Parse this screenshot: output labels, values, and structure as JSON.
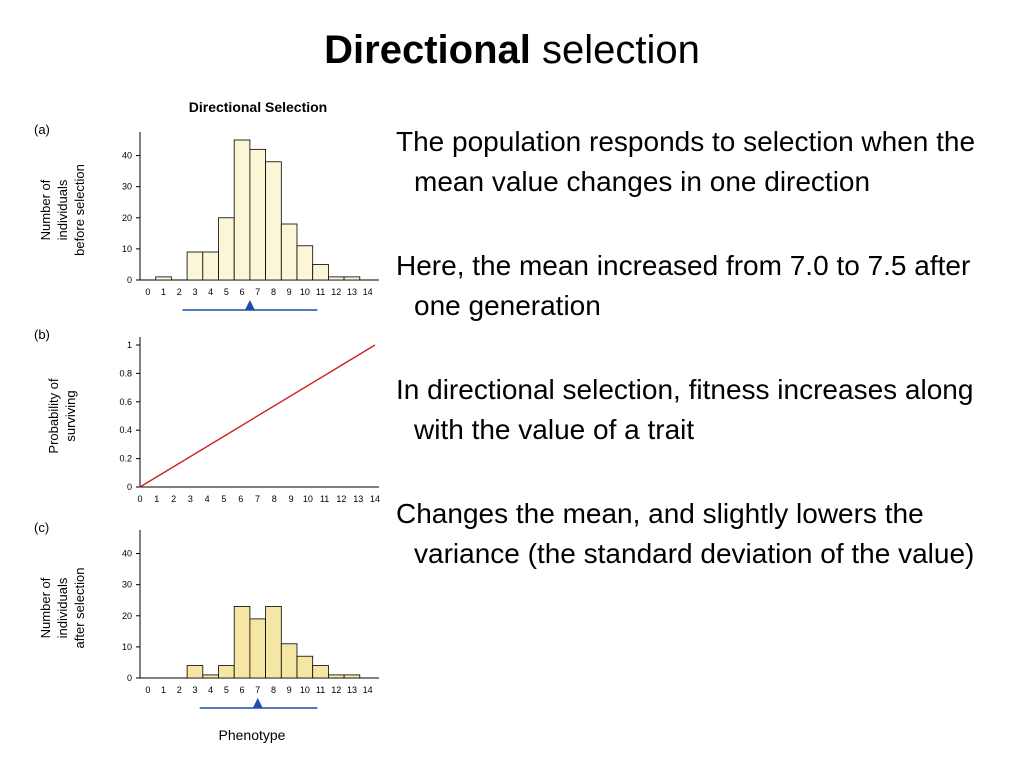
{
  "slide": {
    "title_bold": "Directional",
    "title_rest": "selection",
    "paragraphs": [
      "The population responds to selection when the mean value changes in one direction",
      "Here, the mean increased from 7.0 to 7.5 after one generation",
      "In directional selection, fitness increases along with the value of a trait",
      "Changes the mean, and slightly lowers the variance (the standard deviation of the value)"
    ]
  },
  "figure": {
    "title": "Directional Selection",
    "xlabel": "Phenotype",
    "colors": {
      "bars_a": "#fbf6d6",
      "bars_c": "#f6e6a6",
      "line": "#cc2222",
      "marker": "#1f4fa8"
    }
  },
  "chart_data": [
    {
      "type": "bar",
      "panel": "(a)",
      "ylabel": [
        "Number of",
        "individuals",
        "before selection"
      ],
      "categories": [
        "0",
        "1",
        "2",
        "3",
        "4",
        "5",
        "6",
        "7",
        "8",
        "9",
        "10",
        "11",
        "12",
        "13",
        "14"
      ],
      "values": [
        0,
        1,
        0,
        9,
        9,
        20,
        45,
        42,
        38,
        18,
        11,
        5,
        1,
        1,
        0
      ],
      "yticks": [
        0,
        10,
        20,
        30,
        40
      ],
      "ylim": [
        0,
        45
      ],
      "mean": 7.0,
      "range": [
        2.7,
        11.3
      ]
    },
    {
      "type": "line",
      "panel": "(b)",
      "ylabel": [
        "Probability of",
        "surviving"
      ],
      "x": [
        0,
        14
      ],
      "y": [
        0,
        1
      ],
      "xticks": [
        "0",
        "1",
        "2",
        "3",
        "4",
        "5",
        "6",
        "7",
        "8",
        "9",
        "10",
        "11",
        "12",
        "13",
        "14"
      ],
      "yticks": [
        "0",
        "0.2",
        "0.4",
        "0.6",
        "0.8",
        "1"
      ],
      "ylim": [
        0,
        1
      ]
    },
    {
      "type": "bar",
      "panel": "(c)",
      "ylabel": [
        "Number of",
        "individuals",
        "after selection"
      ],
      "categories": [
        "0",
        "1",
        "2",
        "3",
        "4",
        "5",
        "6",
        "7",
        "8",
        "9",
        "10",
        "11",
        "12",
        "13",
        "14"
      ],
      "values": [
        0,
        0,
        0,
        4,
        1,
        4,
        23,
        19,
        23,
        11,
        7,
        4,
        1,
        1,
        0
      ],
      "yticks": [
        0,
        10,
        20,
        30,
        40
      ],
      "ylim": [
        0,
        45
      ],
      "mean": 7.5,
      "range": [
        3.8,
        11.3
      ]
    }
  ]
}
